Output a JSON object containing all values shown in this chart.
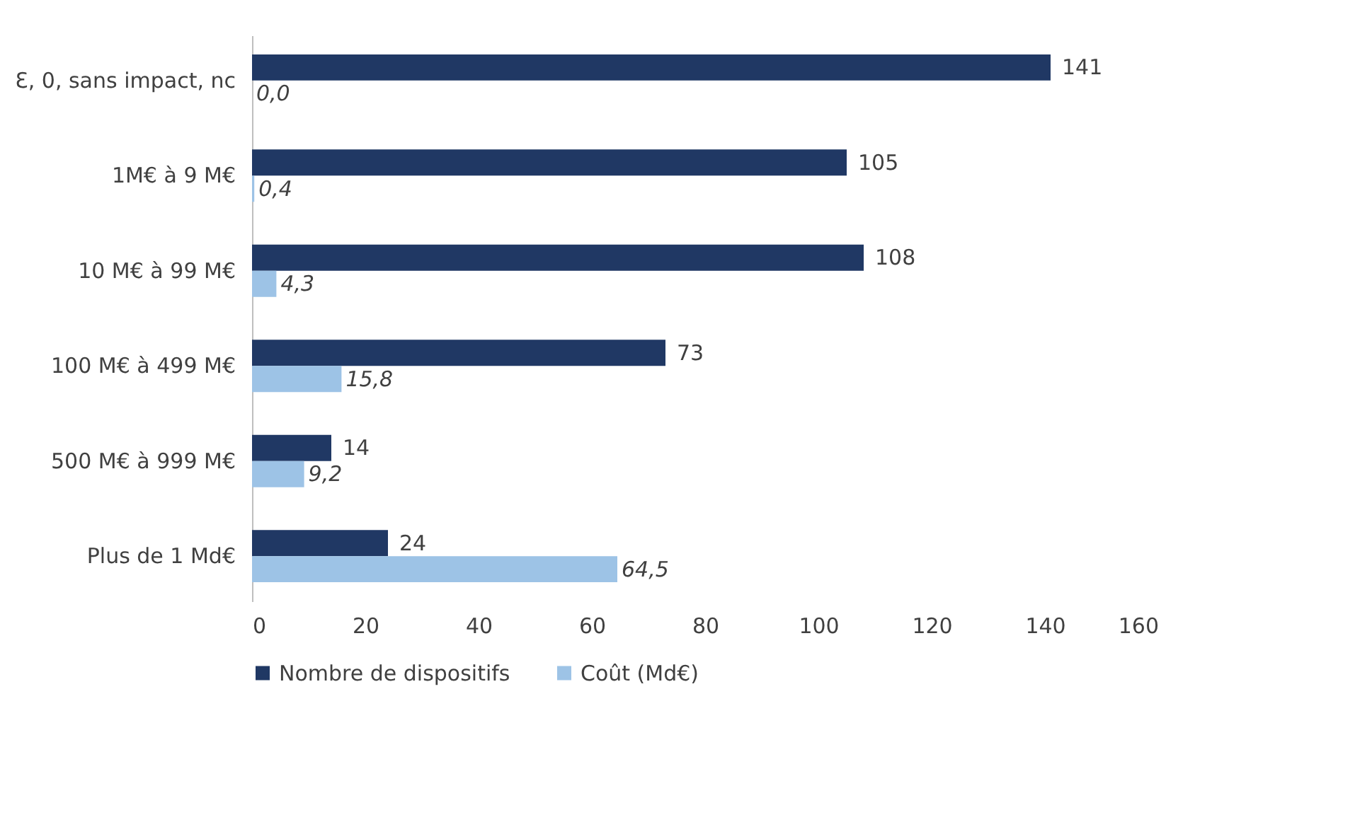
{
  "chart_data": {
    "type": "bar",
    "orientation": "horizontal",
    "categories": [
      "Ɛ, 0, sans impact, nc",
      "1M€ à 9 M€",
      "10 M€ à 99 M€",
      "100 M€ à 499 M€",
      "500 M€ à 999 M€",
      "Plus de 1 Md€"
    ],
    "series": [
      {
        "name": "Nombre de dispositifs",
        "color": "#203864",
        "values": [
          141,
          105,
          108,
          73,
          14,
          24
        ],
        "value_labels": [
          "141",
          "105",
          "108",
          "73",
          "14",
          "24"
        ]
      },
      {
        "name": "Coût (Md€)",
        "color": "#9dc3e6",
        "values": [
          0.0,
          0.4,
          4.3,
          15.8,
          9.2,
          64.5
        ],
        "value_labels": [
          "0,0",
          "0,4",
          "4,3",
          "15,8",
          "9,2",
          "64,5"
        ]
      }
    ],
    "xlim": [
      0,
      160
    ],
    "xticks": [
      0,
      20,
      40,
      60,
      80,
      100,
      120,
      140,
      160
    ],
    "grid": false,
    "legend": "bottom"
  }
}
